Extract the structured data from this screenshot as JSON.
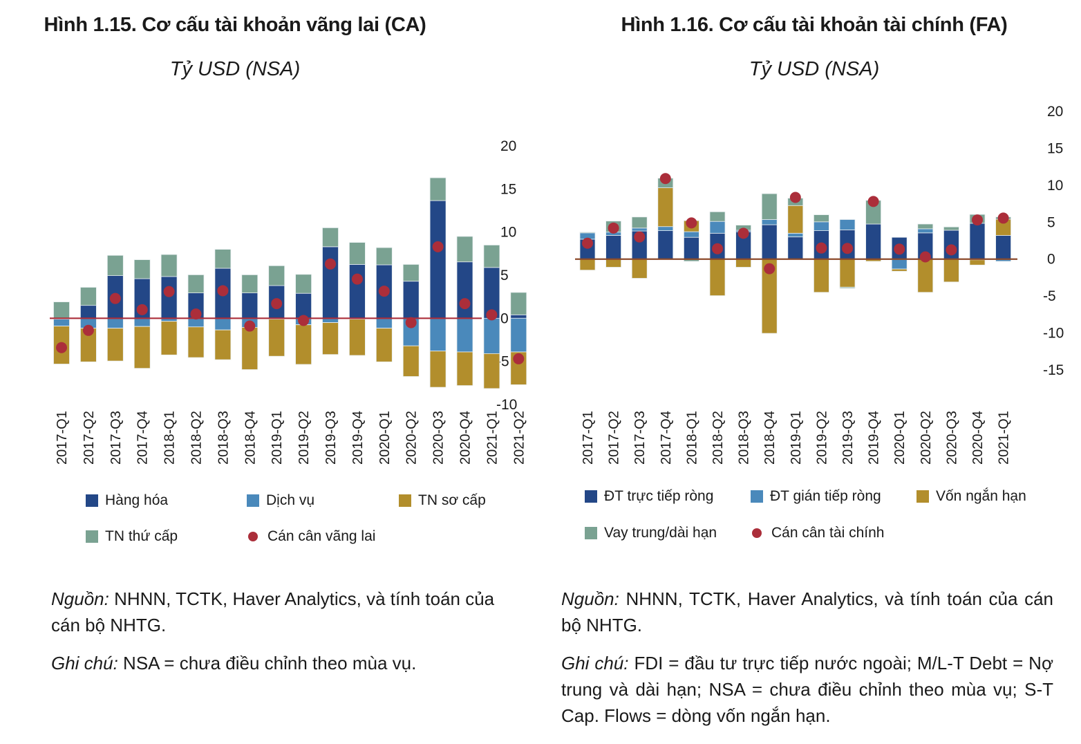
{
  "chart_data": [
    {
      "id": "ca",
      "type": "bar",
      "stacked": true,
      "title": "Hình 1.15. Cơ cấu tài khoản vãng lai (CA)",
      "subtitle": "Tỷ USD (NSA)",
      "xlabel": "",
      "ylabel": "",
      "ylim": [
        -10,
        20
      ],
      "yticks": [
        20,
        15,
        10,
        5,
        0,
        -5,
        -10
      ],
      "y_axis_side": "right",
      "grid": false,
      "legend_position": "bottom",
      "categories": [
        "2017-Q1",
        "2017-Q2",
        "2017-Q3",
        "2017-Q4",
        "2018-Q1",
        "2018-Q2",
        "2018-Q3",
        "2018-Q4",
        "2019-Q1",
        "2019-Q2",
        "2019-Q3",
        "2019-Q4",
        "2020-Q1",
        "2020-Q2",
        "2020-Q3",
        "2020-Q4",
        "2021-Q1",
        "2021-Q2"
      ],
      "series": [
        {
          "name": "Hàng hóa",
          "kind": "bar",
          "color": "#234787",
          "values": [
            -0.1,
            1.5,
            4.95,
            4.6,
            4.85,
            2.95,
            5.8,
            2.95,
            3.8,
            2.9,
            8.3,
            6.25,
            6.2,
            4.3,
            13.65,
            6.55,
            5.9,
            0.4
          ]
        },
        {
          "name": "Dịch vụ",
          "kind": "bar",
          "color": "#4a89bb",
          "values": [
            -0.8,
            -1.15,
            -1.15,
            -0.95,
            -0.35,
            -1.0,
            -1.35,
            -1.05,
            -0.1,
            -0.75,
            -0.5,
            -0.1,
            -1.15,
            -3.2,
            -3.8,
            -3.9,
            -4.1,
            -3.9
          ]
        },
        {
          "name": "TN sơ cấp",
          "kind": "bar",
          "color": "#b28e2c",
          "values": [
            -4.4,
            -3.9,
            -3.8,
            -4.85,
            -3.9,
            -3.55,
            -3.45,
            -4.9,
            -4.3,
            -4.6,
            -3.7,
            -4.2,
            -3.9,
            -3.55,
            -4.2,
            -3.9,
            -4.05,
            -3.8
          ]
        },
        {
          "name": "TN thứ cấp",
          "kind": "bar",
          "color": "#7aa292",
          "values": [
            1.9,
            2.1,
            2.35,
            2.2,
            2.55,
            2.1,
            2.2,
            2.1,
            2.3,
            2.2,
            2.2,
            2.55,
            2.0,
            1.95,
            2.65,
            2.95,
            2.6,
            2.6
          ]
        },
        {
          "name": "Cán cân vãng lai",
          "kind": "dot",
          "color": "#ab2e3a",
          "values": [
            -3.4,
            -1.4,
            2.3,
            1.0,
            3.1,
            0.5,
            3.2,
            -0.9,
            1.7,
            -0.25,
            6.3,
            4.55,
            3.15,
            -0.5,
            8.3,
            1.7,
            0.4,
            -4.7
          ]
        }
      ],
      "zero_line_color": "#ab2e3a"
    },
    {
      "id": "fa",
      "type": "bar",
      "stacked": true,
      "title": "Hình 1.16. Cơ cấu tài khoản tài chính (FA)",
      "subtitle": "Tỷ USD (NSA)",
      "xlabel": "",
      "ylabel": "",
      "ylim": [
        -15,
        20
      ],
      "yticks": [
        20,
        15,
        10,
        5,
        0,
        -5,
        -10,
        -15
      ],
      "y_axis_side": "right",
      "grid": false,
      "legend_position": "bottom",
      "categories": [
        "2017-Q1",
        "2017-Q2",
        "2017-Q3",
        "2017-Q4",
        "2018-Q1",
        "2018-Q2",
        "2018-Q3",
        "2018-Q4",
        "2019-Q1",
        "2019-Q2",
        "2019-Q3",
        "2019-Q4",
        "2020-Q1",
        "2020-Q2",
        "2020-Q3",
        "2020-Q4",
        "2021-Q1"
      ],
      "series": [
        {
          "name": "ĐT trực tiếp ròng",
          "kind": "bar",
          "color": "#234787",
          "values": [
            2.7,
            3.2,
            3.8,
            3.85,
            2.95,
            3.5,
            3.7,
            4.65,
            3.0,
            3.85,
            3.95,
            4.75,
            2.95,
            3.55,
            3.9,
            4.85,
            3.2
          ]
        },
        {
          "name": "ĐT gián tiếp ròng",
          "kind": "bar",
          "color": "#4a89bb",
          "values": [
            0.85,
            0.45,
            0.4,
            0.55,
            0.75,
            1.6,
            0.2,
            0.7,
            0.5,
            1.2,
            1.4,
            0.0,
            -1.35,
            0.55,
            0.0,
            -0.1,
            -0.3
          ]
        },
        {
          "name": "Vốn ngắn hạn",
          "kind": "bar",
          "color": "#b28e2c",
          "values": [
            -1.5,
            -1.1,
            -2.6,
            5.25,
            1.5,
            -4.95,
            -1.1,
            -10.05,
            3.75,
            -4.5,
            -3.8,
            -0.3,
            -0.3,
            -4.5,
            -3.1,
            -0.7,
            2.2
          ]
        },
        {
          "name": "Vay trung/dài hạn",
          "kind": "bar",
          "color": "#7aa292",
          "values": [
            0.1,
            1.5,
            1.5,
            1.3,
            -0.3,
            1.3,
            0.7,
            3.5,
            1.0,
            0.95,
            -0.15,
            3.2,
            0.0,
            0.65,
            0.45,
            1.2,
            0.3
          ]
        },
        {
          "name": "Cán cân tài chính",
          "kind": "dot",
          "color": "#ab2e3a",
          "values": [
            2.15,
            4.2,
            3.0,
            10.9,
            4.9,
            1.4,
            3.5,
            -1.3,
            8.35,
            1.5,
            1.45,
            7.8,
            1.35,
            0.3,
            1.25,
            5.3,
            5.55
          ]
        }
      ],
      "zero_line_color": "#8b4a2b"
    }
  ],
  "left": {
    "title": "Hình 1.15. Cơ cấu tài khoản vãng lai (CA)",
    "subtitle": "Tỷ USD (NSA)",
    "legend": [
      "Hàng hóa",
      "Dịch vụ",
      "TN sơ cấp",
      "TN thứ cấp",
      "Cán cân vãng lai"
    ],
    "source_label": "Nguồn:",
    "source_text": " NHNN, TCTK, Haver Analytics, và tính toán của cán bộ NHTG.",
    "note_label": "Ghi chú:",
    "note_text": " NSA = chưa điều chỉnh theo mùa vụ."
  },
  "right": {
    "title": "Hình 1.16. Cơ cấu tài khoản tài chính (FA)",
    "subtitle": "Tỷ USD (NSA)",
    "legend": [
      "ĐT trực tiếp ròng",
      "ĐT gián tiếp ròng",
      "Vốn ngắn hạn",
      "Vay trung/dài hạn",
      "Cán cân tài chính"
    ],
    "source_label": "Nguồn:",
    "source_text": " NHNN, TCTK, Haver Analytics, và tính toán của cán bộ NHTG.",
    "note_label": "Ghi chú:",
    "note_text": " FDI = đầu tư trực tiếp nước ngoài; M/L-T Debt = Nợ trung và dài hạn; NSA = chưa điều chỉnh theo mùa vụ; S-T Cap. Flows = dòng vốn ngắn hạn."
  },
  "colors": {
    "dark_blue": "#234787",
    "light_blue": "#4a89bb",
    "gold": "#b28e2c",
    "sage": "#7aa292",
    "dot_red": "#ab2e3a"
  }
}
